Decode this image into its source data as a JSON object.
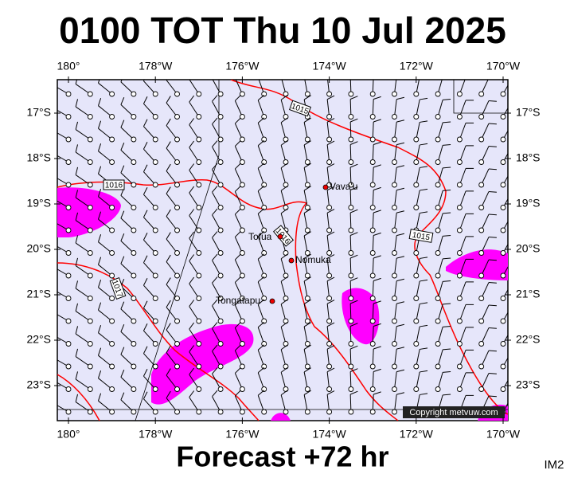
{
  "header": {
    "title": "0100 TOT Thu 10 Jul 2025"
  },
  "axes": {
    "longitudes": [
      "180°",
      "178°W",
      "176°W",
      "174°W",
      "172°W",
      "170°W"
    ],
    "latitudes": [
      "17°S",
      "18°S",
      "19°S",
      "20°S",
      "21°S",
      "22°S",
      "23°S"
    ]
  },
  "places": [
    {
      "label": "Vava'u"
    },
    {
      "label": "Tofua"
    },
    {
      "label": "Nomuka"
    },
    {
      "label": "Tongatapu"
    }
  ],
  "isobars": [
    {
      "label": "1015"
    },
    {
      "label": "1016"
    },
    {
      "label": "1017"
    },
    {
      "label": "1015"
    },
    {
      "label": "1016"
    }
  ],
  "footer": {
    "forecast": "Forecast +72 hr",
    "image_id": "IM2",
    "copyright": "Copyright metvuw.com"
  }
}
